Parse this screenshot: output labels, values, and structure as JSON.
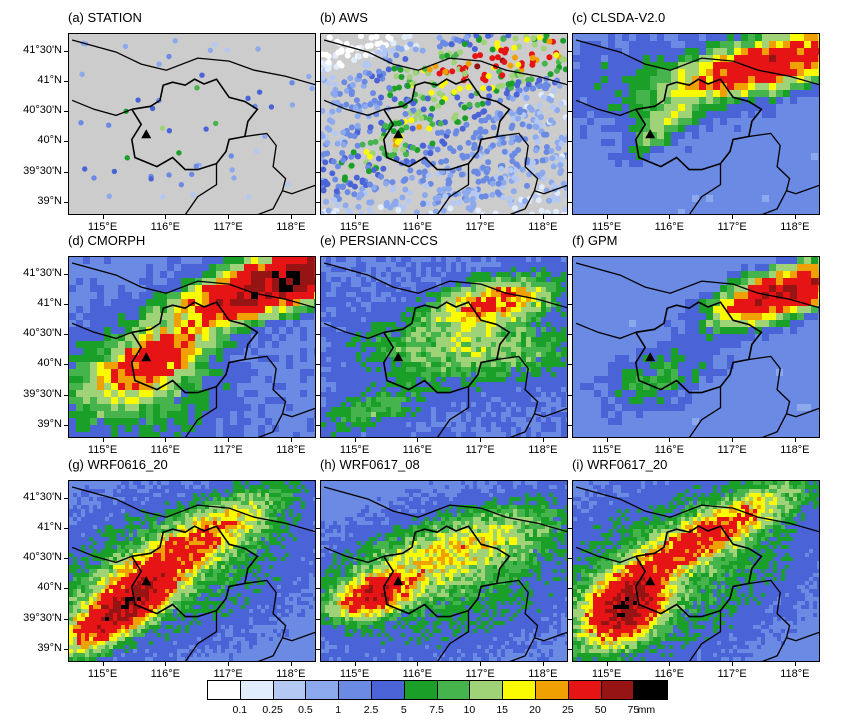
{
  "panels": [
    {
      "label": "(a) STATION",
      "type": "points",
      "dense": false
    },
    {
      "label": "(b) AWS",
      "type": "points",
      "dense": true
    },
    {
      "label": "(c) CLSDA-V2.0",
      "type": "grid",
      "pattern": "clsda"
    },
    {
      "label": "(d) CMORPH",
      "type": "grid",
      "pattern": "cmorph"
    },
    {
      "label": "(e) PERSIANN-CCS",
      "type": "grid",
      "pattern": "persiann"
    },
    {
      "label": "(f) GPM",
      "type": "grid",
      "pattern": "gpm"
    },
    {
      "label": "(g) WRF0616_20",
      "type": "grid",
      "pattern": "wrf1"
    },
    {
      "label": "(h) WRF0617_08",
      "type": "grid",
      "pattern": "wrf2"
    },
    {
      "label": "(i) WRF0617_20",
      "type": "grid",
      "pattern": "wrf3"
    }
  ],
  "lat_ticks": [
    "41°30'N",
    "41°N",
    "40°30'N",
    "40°N",
    "39°30'N",
    "39°N"
  ],
  "lon_ticks": [
    "115°E",
    "116°E",
    "117°E",
    "118°E"
  ],
  "colorbar": {
    "colors": [
      "#ffffff",
      "#e1ecfc",
      "#b4c8f4",
      "#8ba9ec",
      "#6a8ae4",
      "#4a64d8",
      "#1aa028",
      "#46b44c",
      "#a0d278",
      "#fafa00",
      "#f0a000",
      "#e61414",
      "#961414",
      "#000000"
    ],
    "labels": [
      "0.1",
      "0.25",
      "0.5",
      "1",
      "2.5",
      "5",
      "7.5",
      "10",
      "15",
      "20",
      "25",
      "50",
      "75"
    ],
    "unit": "mm"
  },
  "station_marker": "triangle-icon"
}
